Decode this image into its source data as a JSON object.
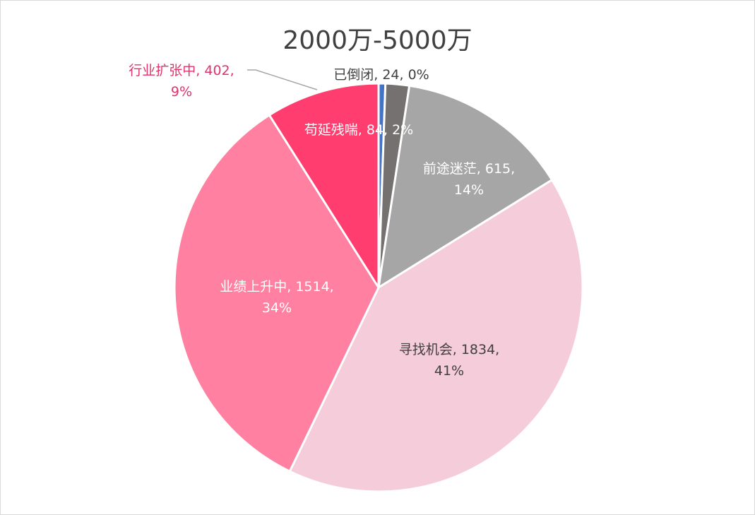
{
  "chart_data": {
    "type": "pie",
    "title": "2000万-5000万",
    "slices": [
      {
        "name": "已倒闭",
        "value": 24,
        "percent": "0%",
        "color": "#4472c4",
        "label_color": "#404040"
      },
      {
        "name": "苟延残喘",
        "value": 84,
        "percent": "2%",
        "color": "#767171",
        "label_color": "#ffffff"
      },
      {
        "name": "前途迷茫",
        "value": 615,
        "percent": "14%",
        "color": "#a6a6a6",
        "label_color": "#ffffff"
      },
      {
        "name": "寻找机会",
        "value": 1834,
        "percent": "41%",
        "color": "#f5ccd9",
        "label_color": "#404040"
      },
      {
        "name": "业绩上升中",
        "value": 1514,
        "percent": "34%",
        "color": "#ff80a0",
        "label_color": "#ffffff"
      },
      {
        "name": "行业扩张中",
        "value": 402,
        "percent": "9%",
        "color": "#ff3d6e",
        "label_color": "#e0336a"
      }
    ],
    "legend": "none"
  }
}
